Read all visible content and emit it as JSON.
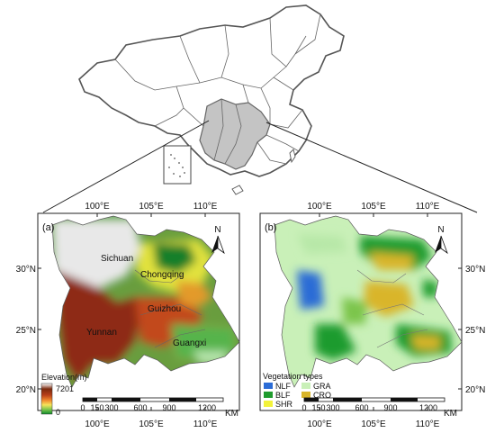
{
  "figure": {
    "top_panel": {
      "inset_label": ""
    },
    "panel_a": {
      "label": "(a)",
      "north": "N",
      "top_ticks": [
        "100°E",
        "105°E",
        "110°E"
      ],
      "bottom_ticks": [
        "100°E",
        "105°E",
        "110°E"
      ],
      "left_ticks": [
        "30°N",
        "25°N",
        "20°N"
      ],
      "places": [
        "Sichuan",
        "Chongqing",
        "Guizhou",
        "Yunnan",
        "Guangxi"
      ],
      "legend": {
        "title": "Elevation(m)",
        "max": "7201",
        "min": "0",
        "colors": [
          "#ffffff",
          "#7b2a0e",
          "#b8401a",
          "#f08a2e",
          "#f5e35a",
          "#7cc54c",
          "#0d8a2a"
        ]
      },
      "scale": {
        "labels": [
          "0",
          "150",
          "300",
          "600",
          "900",
          "1200"
        ],
        "unit": "KM"
      }
    },
    "panel_b": {
      "label": "(b)",
      "north": "N",
      "top_ticks": [
        "100°E",
        "105°E",
        "110°E"
      ],
      "bottom_ticks": [
        "100°E",
        "105°E",
        "110°E"
      ],
      "right_ticks": [
        "30°N",
        "25°N",
        "20°N"
      ],
      "legend": {
        "title": "Vegetation types",
        "items": [
          {
            "code": "NLF",
            "color": "#2b6cd6"
          },
          {
            "code": "GRA",
            "color": "#c9f0b8"
          },
          {
            "code": "BLF",
            "color": "#1f9b2e"
          },
          {
            "code": "CRO",
            "color": "#d9b52a"
          },
          {
            "code": "SHR",
            "color": "#f2f23a"
          }
        ]
      },
      "scale": {
        "labels": [
          "0",
          "150",
          "300",
          "600",
          "900",
          "1200"
        ],
        "unit": "KM"
      }
    }
  }
}
